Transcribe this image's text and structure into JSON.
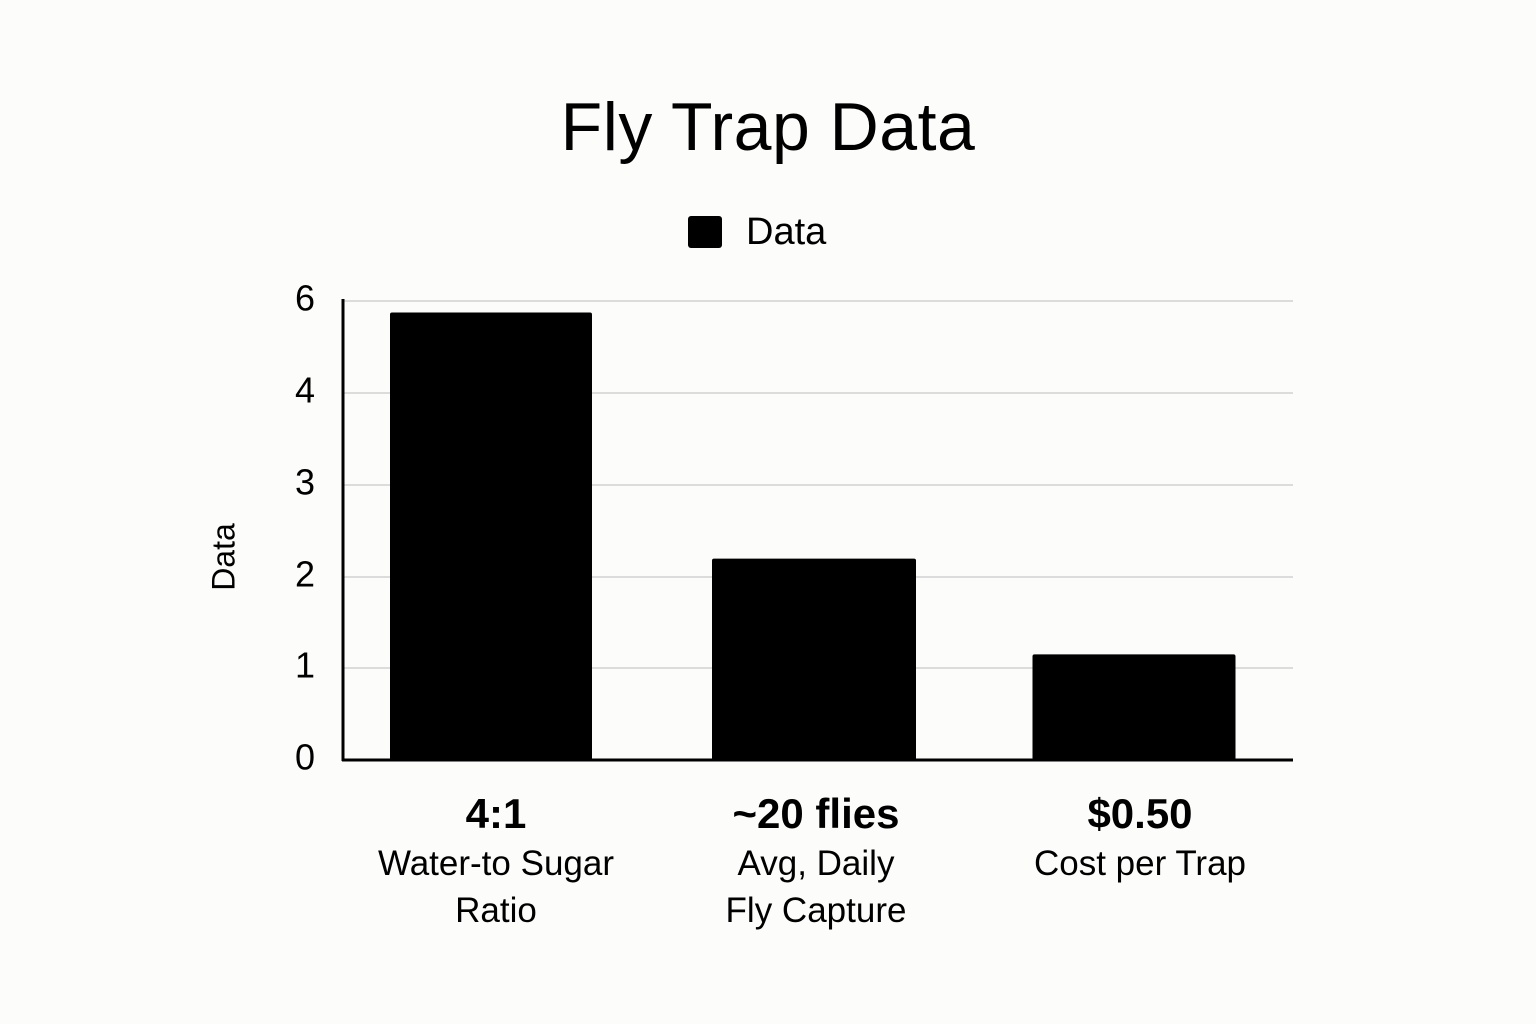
{
  "chart_data": {
    "type": "bar",
    "title": "Fly Trap Data",
    "ylabel": "Data",
    "legend": {
      "position": "top-center"
    },
    "series": [
      {
        "name": "Data",
        "color": "#000000",
        "values": [
          5.75,
          2.2,
          1.15
        ]
      }
    ],
    "categories": [
      {
        "value_label": "4:1",
        "description": "Water-to Sugar\nRatio"
      },
      {
        "value_label": "~20 flies",
        "description": "Avg, Daily\nFly Capture"
      },
      {
        "value_label": "$0.50",
        "description": "Cost per Trap"
      }
    ],
    "yticks": [
      "0",
      "1",
      "2",
      "3",
      "4",
      "6"
    ],
    "grid": true
  }
}
